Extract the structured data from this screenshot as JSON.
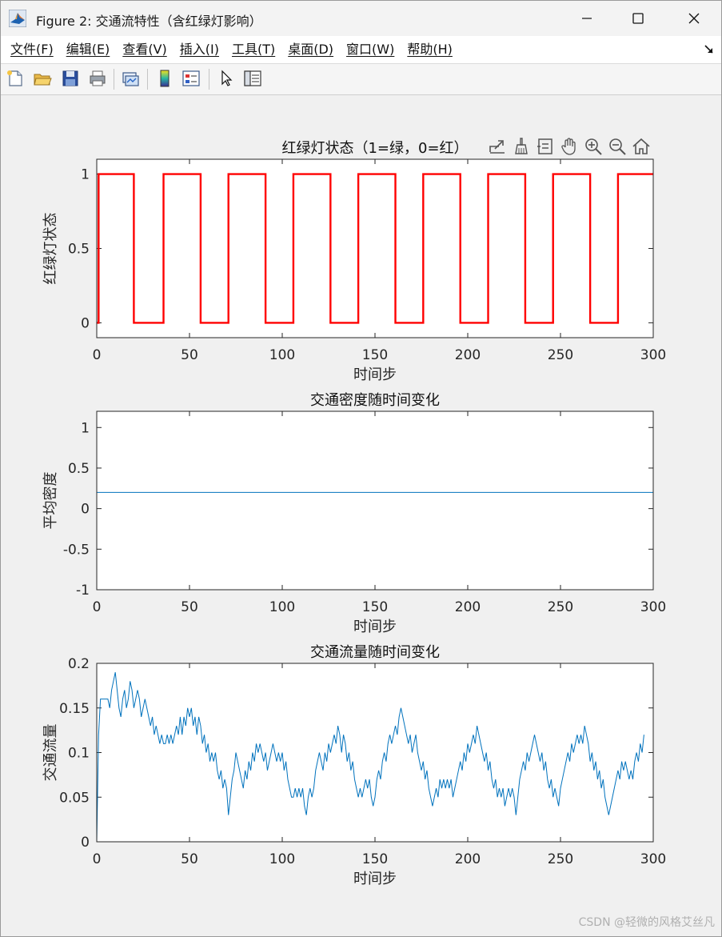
{
  "window": {
    "title": "Figure 2: 交通流特性（含红绿灯影响）",
    "icon": "matlab-logo-icon"
  },
  "menu": {
    "items": [
      "文件(F)",
      "编辑(E)",
      "查看(V)",
      "插入(I)",
      "工具(T)",
      "桌面(D)",
      "窗口(W)",
      "帮助(H)"
    ]
  },
  "toolbar": {
    "icons": [
      "new-figure-icon",
      "open-file-icon",
      "save-icon",
      "print-icon",
      "link-plot-icon",
      "insert-colorbar-icon",
      "insert-legend-icon",
      "edit-plot-icon",
      "property-inspector-icon"
    ]
  },
  "axes_toolbar": {
    "icons": [
      "export-icon",
      "brush-icon",
      "data-tips-icon",
      "pan-icon",
      "zoom-in-icon",
      "zoom-out-icon",
      "restore-view-icon"
    ]
  },
  "chart_data": [
    {
      "type": "line",
      "title": "红绿灯状态（1=绿，0=红）",
      "xlabel": "时间步",
      "ylabel": "红绿灯状态",
      "xlim": [
        0,
        300
      ],
      "ylim": [
        -0.1,
        1.1
      ],
      "xticks": [
        "0",
        "50",
        "100",
        "150",
        "200",
        "250",
        "300"
      ],
      "yticks": [
        "0",
        "0.5",
        "1"
      ],
      "color": "#ff0000",
      "series": [
        {
          "x": [
            0,
            1,
            1,
            20,
            20,
            36,
            36,
            56,
            56,
            71,
            71,
            91,
            91,
            106,
            106,
            126,
            126,
            141,
            141,
            161,
            161,
            176,
            176,
            196,
            196,
            211,
            211,
            231,
            231,
            246,
            246,
            266,
            266,
            281,
            281,
            300
          ],
          "y": [
            0,
            0,
            1,
            1,
            0,
            0,
            1,
            1,
            0,
            0,
            1,
            1,
            0,
            0,
            1,
            1,
            0,
            0,
            1,
            1,
            0,
            0,
            1,
            1,
            0,
            0,
            1,
            1,
            0,
            0,
            1,
            1,
            0,
            0,
            1,
            1
          ]
        }
      ]
    },
    {
      "type": "line",
      "title": "交通密度随时间变化",
      "xlabel": "时间步",
      "ylabel": "平均密度",
      "xlim": [
        0,
        300
      ],
      "ylim": [
        -1,
        1.2
      ],
      "xticks": [
        "0",
        "50",
        "100",
        "150",
        "200",
        "250",
        "300"
      ],
      "yticks": [
        "-1",
        "-0.5",
        "0",
        "0.5",
        "1"
      ],
      "color": "#0072bd",
      "series": [
        {
          "x": [
            0,
            300
          ],
          "y": [
            0.2,
            0.2
          ]
        }
      ]
    },
    {
      "type": "line",
      "title": "交通流量随时间变化",
      "xlabel": "时间步",
      "ylabel": "交通流量",
      "xlim": [
        0,
        300
      ],
      "ylim": [
        0,
        0.2
      ],
      "xticks": [
        "0",
        "50",
        "100",
        "150",
        "200",
        "250",
        "300"
      ],
      "yticks": [
        "0",
        "0.05",
        "0.1",
        "0.15",
        "0.2"
      ],
      "color": "#0072bd",
      "series": [
        {
          "y": [
            0,
            0.12,
            0.16,
            0.16,
            0.16,
            0.16,
            0.16,
            0.15,
            0.17,
            0.18,
            0.19,
            0.17,
            0.15,
            0.14,
            0.16,
            0.17,
            0.15,
            0.16,
            0.18,
            0.17,
            0.15,
            0.16,
            0.17,
            0.16,
            0.14,
            0.15,
            0.16,
            0.15,
            0.14,
            0.13,
            0.14,
            0.12,
            0.13,
            0.12,
            0.11,
            0.12,
            0.11,
            0.11,
            0.12,
            0.11,
            0.12,
            0.11,
            0.12,
            0.13,
            0.12,
            0.14,
            0.12,
            0.14,
            0.13,
            0.15,
            0.14,
            0.15,
            0.13,
            0.14,
            0.12,
            0.14,
            0.13,
            0.11,
            0.12,
            0.1,
            0.11,
            0.09,
            0.1,
            0.09,
            0.1,
            0.08,
            0.07,
            0.08,
            0.06,
            0.07,
            0.06,
            0.03,
            0.05,
            0.07,
            0.08,
            0.1,
            0.09,
            0.08,
            0.07,
            0.06,
            0.08,
            0.07,
            0.09,
            0.08,
            0.1,
            0.09,
            0.11,
            0.1,
            0.11,
            0.1,
            0.09,
            0.1,
            0.08,
            0.09,
            0.1,
            0.11,
            0.1,
            0.09,
            0.1,
            0.09,
            0.1,
            0.08,
            0.09,
            0.07,
            0.06,
            0.05,
            0.05,
            0.06,
            0.05,
            0.06,
            0.05,
            0.06,
            0.04,
            0.03,
            0.05,
            0.06,
            0.05,
            0.06,
            0.08,
            0.09,
            0.1,
            0.09,
            0.08,
            0.1,
            0.09,
            0.11,
            0.1,
            0.11,
            0.12,
            0.11,
            0.13,
            0.12,
            0.1,
            0.12,
            0.11,
            0.09,
            0.1,
            0.08,
            0.09,
            0.07,
            0.06,
            0.05,
            0.06,
            0.05,
            0.06,
            0.07,
            0.06,
            0.07,
            0.05,
            0.04,
            0.05,
            0.07,
            0.08,
            0.07,
            0.09,
            0.1,
            0.09,
            0.11,
            0.12,
            0.11,
            0.12,
            0.13,
            0.12,
            0.14,
            0.15,
            0.14,
            0.13,
            0.12,
            0.11,
            0.12,
            0.1,
            0.11,
            0.12,
            0.1,
            0.09,
            0.08,
            0.09,
            0.07,
            0.08,
            0.06,
            0.05,
            0.04,
            0.05,
            0.06,
            0.05,
            0.07,
            0.06,
            0.07,
            0.06,
            0.07,
            0.06,
            0.07,
            0.05,
            0.06,
            0.07,
            0.08,
            0.09,
            0.08,
            0.1,
            0.09,
            0.11,
            0.1,
            0.11,
            0.12,
            0.11,
            0.13,
            0.12,
            0.11,
            0.1,
            0.09,
            0.1,
            0.08,
            0.09,
            0.07,
            0.06,
            0.07,
            0.05,
            0.06,
            0.05,
            0.06,
            0.04,
            0.05,
            0.06,
            0.05,
            0.06,
            0.05,
            0.03,
            0.05,
            0.07,
            0.08,
            0.09,
            0.08,
            0.1,
            0.09,
            0.1,
            0.11,
            0.12,
            0.11,
            0.1,
            0.09,
            0.1,
            0.08,
            0.09,
            0.07,
            0.06,
            0.07,
            0.05,
            0.06,
            0.05,
            0.04,
            0.06,
            0.07,
            0.08,
            0.09,
            0.1,
            0.09,
            0.11,
            0.1,
            0.11,
            0.12,
            0.11,
            0.12,
            0.11,
            0.13,
            0.12,
            0.11,
            0.09,
            0.1,
            0.08,
            0.09,
            0.07,
            0.08,
            0.06,
            0.07,
            0.05,
            0.04,
            0.03,
            0.04,
            0.05,
            0.06,
            0.07,
            0.08,
            0.07,
            0.09,
            0.08,
            0.09,
            0.08,
            0.07,
            0.08,
            0.07,
            0.09,
            0.1,
            0.09,
            0.11,
            0.1,
            0.12
          ]
        }
      ]
    }
  ],
  "watermark": "CSDN @轻微的风格艾丝凡"
}
